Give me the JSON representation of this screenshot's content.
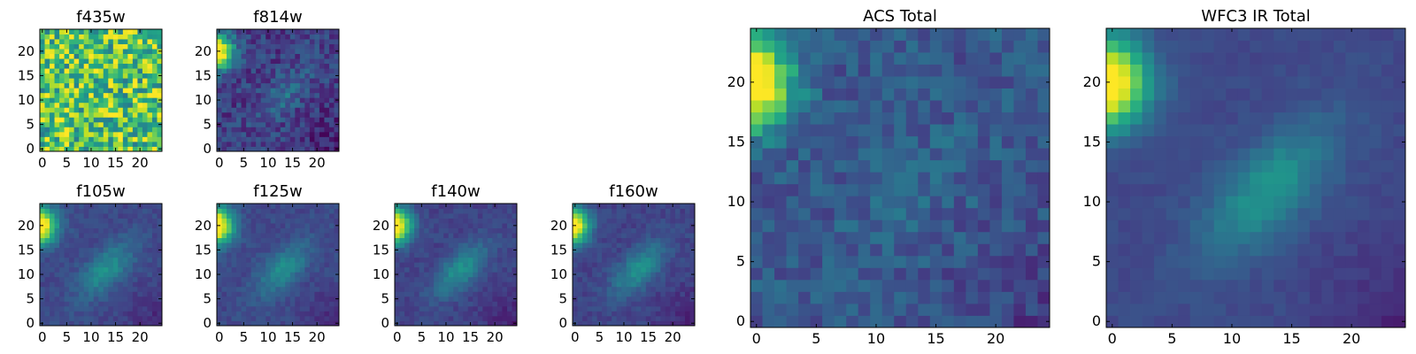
{
  "chart_data": [
    {
      "type": "heatmap",
      "title": "f435w",
      "xticks": [
        "0",
        "5",
        "10",
        "15",
        "20"
      ],
      "yticks": [
        "0",
        "5",
        "10",
        "15",
        "20"
      ],
      "xlim": [
        -0.5,
        24.5
      ],
      "ylim": [
        -0.5,
        24.5
      ],
      "pattern": "noise",
      "level": 0.72,
      "noise": 0.32,
      "blob": 0.0,
      "corner": 0.05
    },
    {
      "type": "heatmap",
      "title": "f814w",
      "xticks": [
        "0",
        "5",
        "10",
        "15",
        "20"
      ],
      "yticks": [
        "0",
        "5",
        "10",
        "15",
        "20"
      ],
      "xlim": [
        -0.5,
        24.5
      ],
      "ylim": [
        -0.5,
        24.5
      ],
      "pattern": "source",
      "level": 0.18,
      "noise": 0.12,
      "blob": 0.18,
      "corner": 1.0
    },
    {
      "type": "heatmap",
      "title": "f105w",
      "xticks": [
        "0",
        "5",
        "10",
        "15",
        "20"
      ],
      "yticks": [
        "0",
        "5",
        "10",
        "15",
        "20"
      ],
      "xlim": [
        -0.5,
        24.5
      ],
      "ylim": [
        -0.5,
        24.5
      ],
      "pattern": "source",
      "level": 0.22,
      "noise": 0.05,
      "blob": 0.28,
      "corner": 1.0
    },
    {
      "type": "heatmap",
      "title": "f125w",
      "xticks": [
        "0",
        "5",
        "10",
        "15",
        "20"
      ],
      "yticks": [
        "0",
        "5",
        "10",
        "15",
        "20"
      ],
      "xlim": [
        -0.5,
        24.5
      ],
      "ylim": [
        -0.5,
        24.5
      ],
      "pattern": "source",
      "level": 0.22,
      "noise": 0.05,
      "blob": 0.26,
      "corner": 1.0
    },
    {
      "type": "heatmap",
      "title": "f140w",
      "xticks": [
        "0",
        "5",
        "10",
        "15",
        "20"
      ],
      "yticks": [
        "0",
        "5",
        "10",
        "15",
        "20"
      ],
      "xlim": [
        -0.5,
        24.5
      ],
      "ylim": [
        -0.5,
        24.5
      ],
      "pattern": "source",
      "level": 0.2,
      "noise": 0.05,
      "blob": 0.3,
      "corner": 1.0
    },
    {
      "type": "heatmap",
      "title": "f160w",
      "xticks": [
        "0",
        "5",
        "10",
        "15",
        "20"
      ],
      "yticks": [
        "0",
        "5",
        "10",
        "15",
        "20"
      ],
      "xlim": [
        -0.5,
        24.5
      ],
      "ylim": [
        -0.5,
        24.5
      ],
      "pattern": "source",
      "level": 0.2,
      "noise": 0.05,
      "blob": 0.3,
      "corner": 1.0
    },
    {
      "type": "heatmap",
      "title": "ACS Total",
      "xticks": [
        "0",
        "5",
        "10",
        "15",
        "20"
      ],
      "yticks": [
        "0",
        "5",
        "10",
        "15",
        "20"
      ],
      "xlim": [
        -0.5,
        24.5
      ],
      "ylim": [
        -0.5,
        24.5
      ],
      "pattern": "source",
      "level": 0.27,
      "noise": 0.1,
      "blob": 0.06,
      "corner": 1.0
    },
    {
      "type": "heatmap",
      "title": "WFC3 IR Total",
      "xticks": [
        "0",
        "5",
        "10",
        "15",
        "20"
      ],
      "yticks": [
        "0",
        "5",
        "10",
        "15",
        "20"
      ],
      "xlim": [
        -0.5,
        24.5
      ],
      "ylim": [
        -0.5,
        24.5
      ],
      "pattern": "source",
      "level": 0.22,
      "noise": 0.03,
      "blob": 0.3,
      "corner": 1.0
    }
  ]
}
